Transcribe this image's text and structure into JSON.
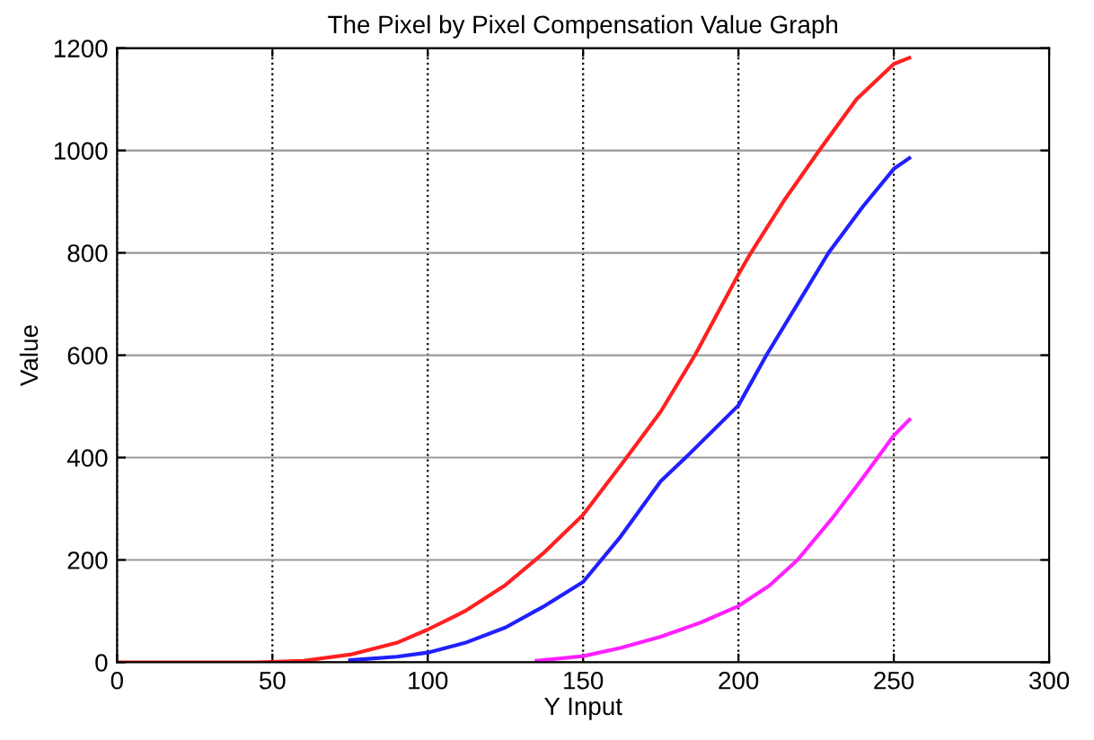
{
  "chart_data": {
    "type": "line",
    "title": "The Pixel by Pixel Compensation Value Graph",
    "xlabel": "Y Input",
    "ylabel": "Value",
    "xlim": [
      0,
      300
    ],
    "xticks": [
      0,
      50,
      100,
      150,
      200,
      250,
      300
    ],
    "ylim": [
      0,
      1200
    ],
    "yticks": [
      0,
      200,
      400,
      600,
      800,
      1000,
      1200
    ],
    "grid": true,
    "marker": "none",
    "line_style": "solid",
    "series": [
      {
        "color": "#ff2020",
        "x": [
          0,
          25,
          45,
          60,
          75,
          90,
          100,
          112,
          125,
          137,
          150,
          164,
          175,
          186,
          200,
          204,
          215,
          226,
          238,
          250,
          255
        ],
        "values": [
          0,
          0,
          0,
          3,
          15,
          38,
          64,
          100,
          151,
          212,
          288,
          400,
          490,
          600,
          758,
          800,
          905,
          1000,
          1100,
          1169,
          1181
        ]
      },
      {
        "color": "#2020ff",
        "x": [
          75,
          90,
          100,
          112,
          125,
          137,
          150,
          162,
          175,
          183,
          200,
          209,
          220,
          229,
          240,
          250,
          255
        ],
        "values": [
          4,
          11,
          19,
          38,
          68,
          108,
          157,
          245,
          354,
          400,
          502,
          600,
          710,
          800,
          890,
          964,
          985
        ]
      },
      {
        "color": "#ff20ff",
        "x": [
          135,
          150,
          162,
          175,
          188,
          200,
          210,
          219,
          230,
          240,
          250,
          255
        ],
        "values": [
          3,
          12,
          28,
          50,
          78,
          110,
          150,
          200,
          280,
          360,
          443,
          474
        ]
      }
    ]
  }
}
